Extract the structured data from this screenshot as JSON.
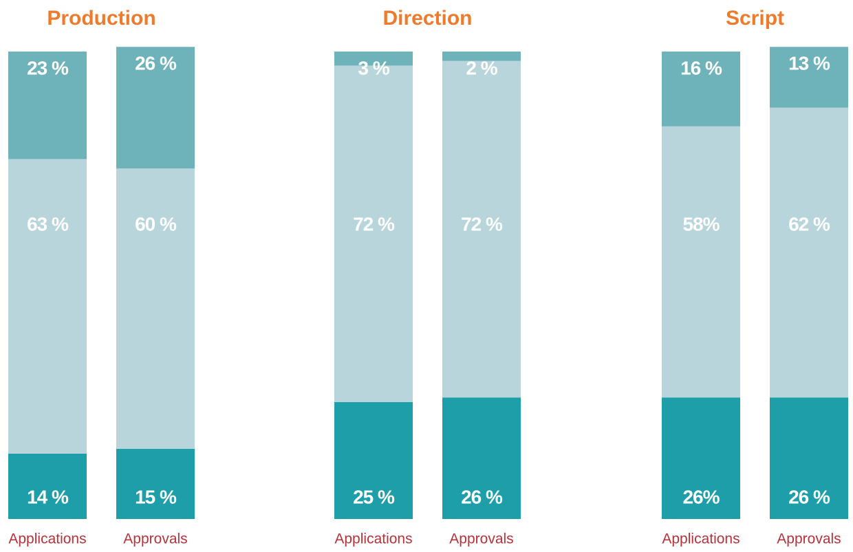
{
  "chart_data": [
    {
      "type": "bar",
      "stacked": true,
      "title": "Production",
      "categories": [
        "Applications",
        "Approvals"
      ],
      "ylim": [
        0,
        100
      ],
      "series": [
        {
          "color": "#1d9ea8",
          "values": [
            14,
            15
          ],
          "value_labels": [
            "14 %",
            "15 %"
          ]
        },
        {
          "color": "#b7d5da",
          "values": [
            63,
            60
          ],
          "value_labels": [
            "63 %",
            "60 %"
          ]
        },
        {
          "color": "#6eb2ba",
          "values": [
            23,
            26
          ],
          "value_labels": [
            "23 %",
            "26 %"
          ]
        }
      ]
    },
    {
      "type": "bar",
      "stacked": true,
      "title": "Direction",
      "categories": [
        "Applications",
        "Approvals"
      ],
      "ylim": [
        0,
        100
      ],
      "series": [
        {
          "color": "#1d9ea8",
          "values": [
            25,
            26
          ],
          "value_labels": [
            "25 %",
            "26 %"
          ]
        },
        {
          "color": "#b7d5da",
          "values": [
            72,
            72
          ],
          "value_labels": [
            "72 %",
            "72 %"
          ]
        },
        {
          "color": "#6eb2ba",
          "values": [
            3,
            2
          ],
          "value_labels": [
            "3 %",
            "2 %"
          ]
        }
      ]
    },
    {
      "type": "bar",
      "stacked": true,
      "title": "Script",
      "categories": [
        "Applications",
        "Approvals"
      ],
      "ylim": [
        0,
        100
      ],
      "series": [
        {
          "color": "#1d9ea8",
          "values": [
            26,
            26
          ],
          "value_labels": [
            "26%",
            "26 %"
          ]
        },
        {
          "color": "#b7d5da",
          "values": [
            58,
            62
          ],
          "value_labels": [
            "58%",
            "62 %"
          ]
        },
        {
          "color": "#6eb2ba",
          "values": [
            16,
            13
          ],
          "value_labels": [
            "16 %",
            "13 %"
          ]
        }
      ]
    }
  ]
}
